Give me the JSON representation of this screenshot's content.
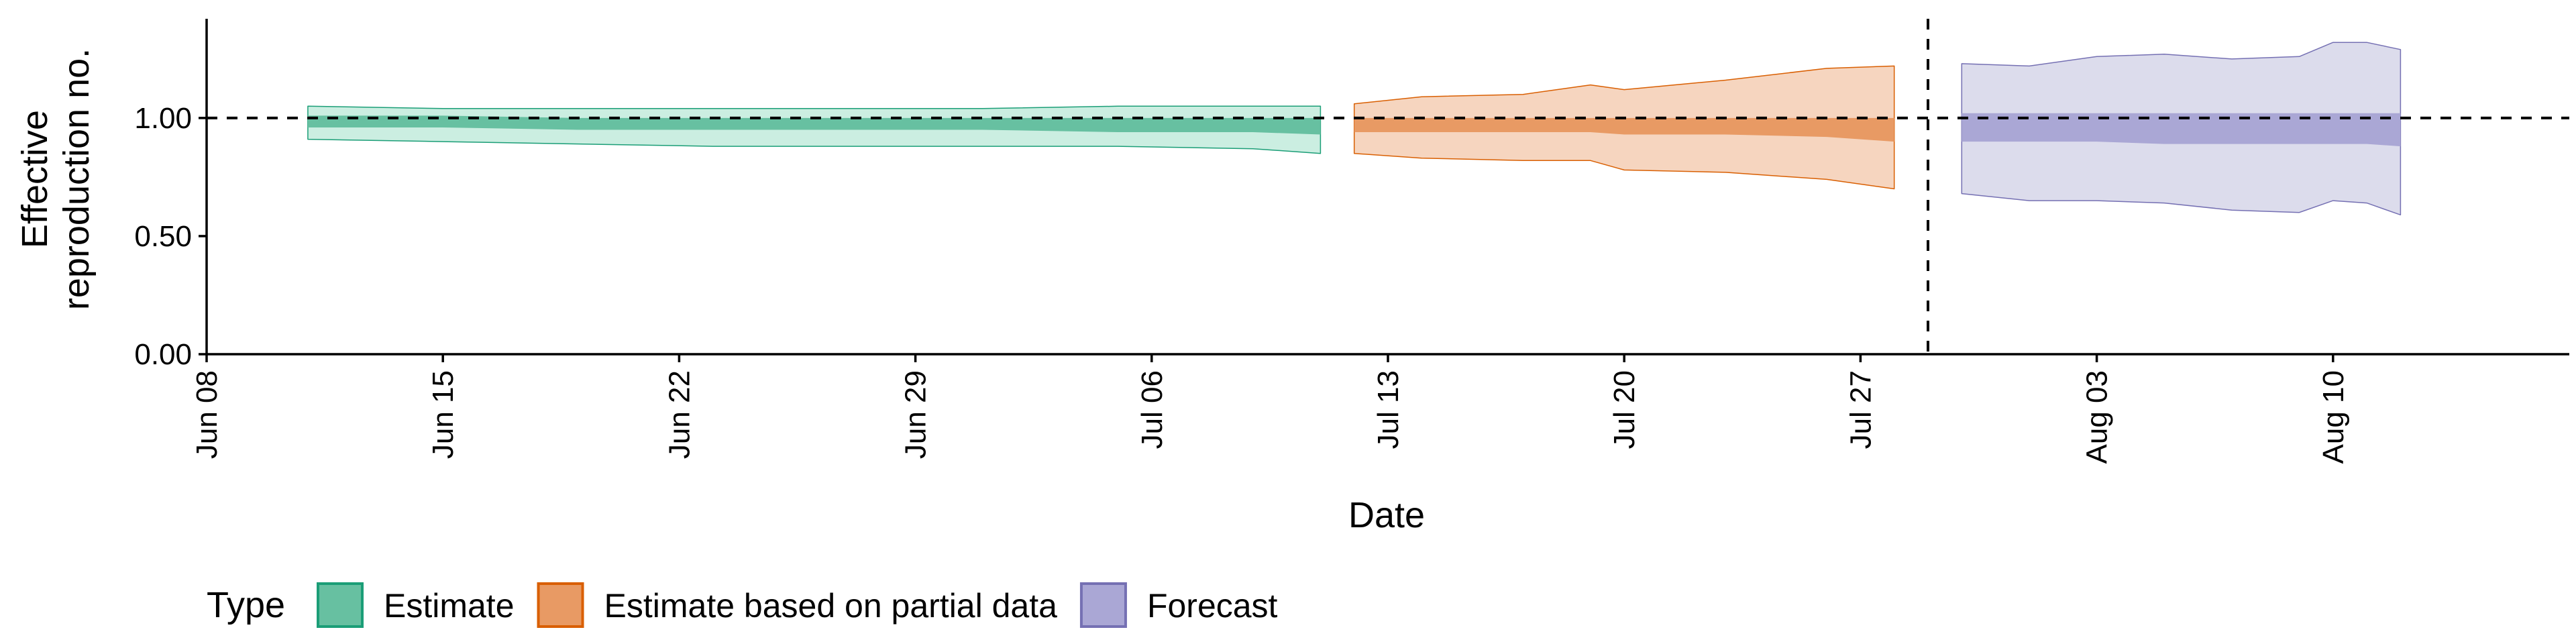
{
  "chart_data": {
    "type": "area",
    "xlabel": "Date",
    "ylabel_lines": [
      "Effective",
      "reproduction no."
    ],
    "x_axis": {
      "type": "date",
      "range": [
        "2020-06-08",
        "2020-08-17"
      ],
      "ticks": [
        {
          "date": "2020-06-08",
          "label": "Jun 08"
        },
        {
          "date": "2020-06-15",
          "label": "Jun 15"
        },
        {
          "date": "2020-06-22",
          "label": "Jun 22"
        },
        {
          "date": "2020-06-29",
          "label": "Jun 29"
        },
        {
          "date": "2020-07-06",
          "label": "Jul 06"
        },
        {
          "date": "2020-07-13",
          "label": "Jul 13"
        },
        {
          "date": "2020-07-20",
          "label": "Jul 20"
        },
        {
          "date": "2020-07-27",
          "label": "Jul 27"
        },
        {
          "date": "2020-08-03",
          "label": "Aug 03"
        },
        {
          "date": "2020-08-10",
          "label": "Aug 10"
        }
      ]
    },
    "y_axis": {
      "range": [
        0,
        1.42
      ],
      "ticks": [
        {
          "value": 0.0,
          "label": "0.00"
        },
        {
          "value": 0.5,
          "label": "0.50"
        },
        {
          "value": 1.0,
          "label": "1.00"
        }
      ]
    },
    "reference_lines": [
      {
        "orientation": "horizontal",
        "value": 1.0,
        "style": "dashed"
      },
      {
        "orientation": "vertical",
        "date": "2020-07-29",
        "style": "dashed"
      }
    ],
    "legend": {
      "title": "Type",
      "position": "bottom",
      "entries": [
        "Estimate",
        "Estimate based on partial data",
        "Forecast"
      ]
    },
    "series": [
      {
        "name": "Estimate",
        "colors": {
          "outer": "#cbeee1",
          "inner": "#67c0a1",
          "line": "#1b9e77"
        },
        "points": [
          {
            "date": "2020-06-11",
            "lo90": 0.91,
            "lo50": 0.96,
            "hi50": 1.01,
            "hi90": 1.05
          },
          {
            "date": "2020-06-15",
            "lo90": 0.9,
            "lo50": 0.96,
            "hi50": 1.01,
            "hi90": 1.04
          },
          {
            "date": "2020-06-19",
            "lo90": 0.89,
            "lo50": 0.95,
            "hi50": 1.0,
            "hi90": 1.04
          },
          {
            "date": "2020-06-23",
            "lo90": 0.88,
            "lo50": 0.95,
            "hi50": 1.0,
            "hi90": 1.04
          },
          {
            "date": "2020-06-27",
            "lo90": 0.88,
            "lo50": 0.95,
            "hi50": 1.0,
            "hi90": 1.04
          },
          {
            "date": "2020-07-01",
            "lo90": 0.88,
            "lo50": 0.95,
            "hi50": 1.0,
            "hi90": 1.04
          },
          {
            "date": "2020-07-05",
            "lo90": 0.88,
            "lo50": 0.94,
            "hi50": 1.0,
            "hi90": 1.05
          },
          {
            "date": "2020-07-09",
            "lo90": 0.87,
            "lo50": 0.94,
            "hi50": 1.0,
            "hi90": 1.05
          },
          {
            "date": "2020-07-11",
            "lo90": 0.85,
            "lo50": 0.93,
            "hi50": 1.0,
            "hi90": 1.05
          }
        ]
      },
      {
        "name": "Estimate based on partial data",
        "colors": {
          "outer": "#f6d5bf",
          "inner": "#e89a64",
          "line": "#d95f02"
        },
        "points": [
          {
            "date": "2020-07-12",
            "lo90": 0.85,
            "lo50": 0.94,
            "hi50": 1.0,
            "hi90": 1.06
          },
          {
            "date": "2020-07-14",
            "lo90": 0.83,
            "lo50": 0.94,
            "hi50": 1.0,
            "hi90": 1.09
          },
          {
            "date": "2020-07-17",
            "lo90": 0.82,
            "lo50": 0.94,
            "hi50": 1.0,
            "hi90": 1.1
          },
          {
            "date": "2020-07-19",
            "lo90": 0.82,
            "lo50": 0.94,
            "hi50": 1.0,
            "hi90": 1.14
          },
          {
            "date": "2020-07-20",
            "lo90": 0.78,
            "lo50": 0.93,
            "hi50": 1.0,
            "hi90": 1.12
          },
          {
            "date": "2020-07-23",
            "lo90": 0.77,
            "lo50": 0.93,
            "hi50": 1.0,
            "hi90": 1.16
          },
          {
            "date": "2020-07-26",
            "lo90": 0.74,
            "lo50": 0.92,
            "hi50": 1.0,
            "hi90": 1.21
          },
          {
            "date": "2020-07-28",
            "lo90": 0.7,
            "lo50": 0.9,
            "hi50": 1.0,
            "hi90": 1.22
          }
        ]
      },
      {
        "name": "Forecast",
        "colors": {
          "outer": "#dcdcec",
          "inner": "#aaa7d5",
          "line": "#7570b3"
        },
        "points": [
          {
            "date": "2020-07-30",
            "lo90": 0.68,
            "lo50": 0.9,
            "hi50": 1.02,
            "hi90": 1.23
          },
          {
            "date": "2020-08-01",
            "lo90": 0.65,
            "lo50": 0.9,
            "hi50": 1.02,
            "hi90": 1.22
          },
          {
            "date": "2020-08-03",
            "lo90": 0.65,
            "lo50": 0.9,
            "hi50": 1.02,
            "hi90": 1.26
          },
          {
            "date": "2020-08-05",
            "lo90": 0.64,
            "lo50": 0.89,
            "hi50": 1.02,
            "hi90": 1.27
          },
          {
            "date": "2020-08-07",
            "lo90": 0.61,
            "lo50": 0.89,
            "hi50": 1.02,
            "hi90": 1.25
          },
          {
            "date": "2020-08-09",
            "lo90": 0.6,
            "lo50": 0.89,
            "hi50": 1.02,
            "hi90": 1.26
          },
          {
            "date": "2020-08-10",
            "lo90": 0.65,
            "lo50": 0.89,
            "hi50": 1.02,
            "hi90": 1.32
          },
          {
            "date": "2020-08-11",
            "lo90": 0.64,
            "lo50": 0.89,
            "hi50": 1.02,
            "hi90": 1.32
          },
          {
            "date": "2020-08-12",
            "lo90": 0.59,
            "lo50": 0.88,
            "hi50": 1.02,
            "hi90": 1.29
          }
        ]
      }
    ]
  }
}
